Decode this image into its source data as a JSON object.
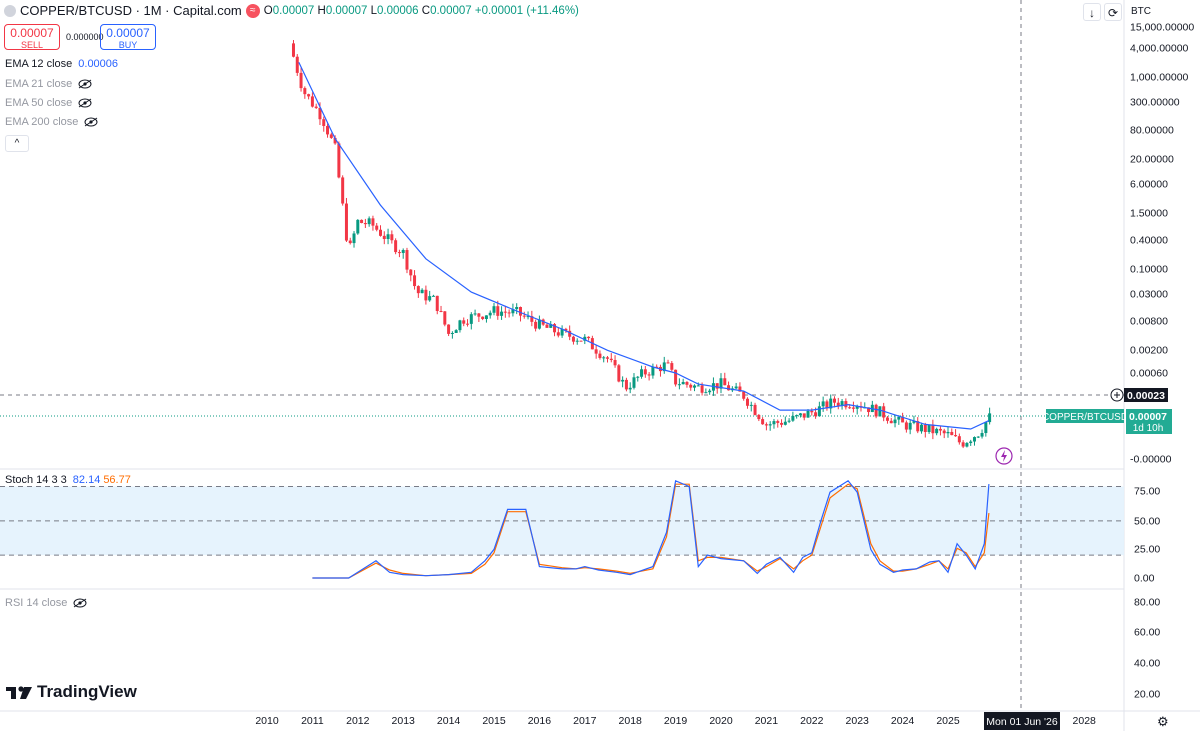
{
  "header": {
    "symbol": "COPPER/BTCUSD · 1M · Capital.com",
    "o_label": "O",
    "o": "0.00007",
    "h_label": "H",
    "h": "0.00007",
    "l_label": "L",
    "l": "0.00006",
    "c_label": "C",
    "c": "0.00007",
    "change": "+0.00001 (+11.46%)"
  },
  "trade": {
    "sell_price": "0.00007",
    "sell_label": "SELL",
    "spread": "0.000000",
    "buy_price": "0.00007",
    "buy_label": "BUY"
  },
  "indicators": [
    {
      "label": "EMA 12 close",
      "value": "0.00006",
      "visible": true
    },
    {
      "label": "EMA 21 close",
      "visible": false
    },
    {
      "label": "EMA 50 close",
      "visible": false
    },
    {
      "label": "EMA 200 close",
      "visible": false
    }
  ],
  "toolbar": {
    "currency": "BTC"
  },
  "price_axis": [
    "15,000.00000",
    "4,000.00000",
    "1,000.00000",
    "300.00000",
    "80.00000",
    "20.00000",
    "6.00000",
    "1.50000",
    "0.40000",
    "0.10000",
    "0.03000",
    "0.00800",
    "0.00200",
    "0.00060",
    "-0.00000"
  ],
  "price_labels": {
    "crosshair_price": "0.00023",
    "symbol_tag": "COPPER/BTCUSD",
    "last_price": "0.00007",
    "countdown": "1d 10h"
  },
  "stoch": {
    "label": "Stoch 14 3 3",
    "k": "82.14",
    "d": "56.77",
    "axis": [
      "75.00",
      "50.00",
      "25.00",
      "0.00"
    ]
  },
  "rsi": {
    "label": "RSI 14 close",
    "axis": [
      "80.00",
      "60.00",
      "40.00",
      "20.00"
    ]
  },
  "time_axis": {
    "years": [
      "2010",
      "2011",
      "2012",
      "2013",
      "2014",
      "2015",
      "2016",
      "2017",
      "2018",
      "2019",
      "2020",
      "2021",
      "2022",
      "2023",
      "2024",
      "2025",
      "2028"
    ],
    "crosshair_date": "Mon 01 Jun '26"
  },
  "brand": {
    "logo_text": "TradingView"
  },
  "colors": {
    "up": "#089981",
    "down": "#f23645",
    "ema": "#2962ff",
    "stoch_k": "#2962ff",
    "stoch_d": "#ff6d00",
    "band": "#e3f2fd"
  },
  "chart_data": [
    {
      "type": "candlestick",
      "title": "COPPER/BTCUSD",
      "ylabel": "BTC",
      "y_scale": "log",
      "x_range": [
        "2010",
        "2026"
      ],
      "series": [
        {
          "name": "COPPER/BTCUSD",
          "points": [
            {
              "x": 2010.5,
              "y": 5000
            },
            {
              "x": 2010.8,
              "y": 500
            },
            {
              "x": 2011.2,
              "y": 150
            },
            {
              "x": 2011.5,
              "y": 30
            },
            {
              "x": 2011.8,
              "y": 0.2
            },
            {
              "x": 2012.0,
              "y": 0.9
            },
            {
              "x": 2012.3,
              "y": 0.8
            },
            {
              "x": 2012.7,
              "y": 0.35
            },
            {
              "x": 2013.0,
              "y": 0.2
            },
            {
              "x": 2013.3,
              "y": 0.03
            },
            {
              "x": 2013.7,
              "y": 0.02
            },
            {
              "x": 2014.0,
              "y": 0.004
            },
            {
              "x": 2014.3,
              "y": 0.008
            },
            {
              "x": 2015.0,
              "y": 0.012
            },
            {
              "x": 2015.5,
              "y": 0.011
            },
            {
              "x": 2016.0,
              "y": 0.006
            },
            {
              "x": 2016.5,
              "y": 0.004
            },
            {
              "x": 2017.0,
              "y": 0.003
            },
            {
              "x": 2017.5,
              "y": 0.0012
            },
            {
              "x": 2017.9,
              "y": 0.0003
            },
            {
              "x": 2018.3,
              "y": 0.0006
            },
            {
              "x": 2018.8,
              "y": 0.0009
            },
            {
              "x": 2019.0,
              "y": 0.0004
            },
            {
              "x": 2019.5,
              "y": 0.0003
            },
            {
              "x": 2020.0,
              "y": 0.00035
            },
            {
              "x": 2020.5,
              "y": 0.0002
            },
            {
              "x": 2021.0,
              "y": 5e-05
            },
            {
              "x": 2021.5,
              "y": 6e-05
            },
            {
              "x": 2022.0,
              "y": 9e-05
            },
            {
              "x": 2022.5,
              "y": 0.00015
            },
            {
              "x": 2023.0,
              "y": 0.00014
            },
            {
              "x": 2023.5,
              "y": 9e-05
            },
            {
              "x": 2024.0,
              "y": 5e-05
            },
            {
              "x": 2024.5,
              "y": 4e-05
            },
            {
              "x": 2025.0,
              "y": 3e-05
            },
            {
              "x": 2025.3,
              "y": 2e-05
            },
            {
              "x": 2025.7,
              "y": 3.5e-05
            },
            {
              "x": 2025.9,
              "y": 7e-05
            }
          ]
        },
        {
          "name": "EMA 12 close",
          "points": [
            {
              "x": 2010.7,
              "y": 2000
            },
            {
              "x": 2011.5,
              "y": 50
            },
            {
              "x": 2012.5,
              "y": 2
            },
            {
              "x": 2013.5,
              "y": 0.15
            },
            {
              "x": 2014.5,
              "y": 0.03
            },
            {
              "x": 2015.5,
              "y": 0.012
            },
            {
              "x": 2016.5,
              "y": 0.005
            },
            {
              "x": 2017.5,
              "y": 0.0018
            },
            {
              "x": 2018.5,
              "y": 0.0008
            },
            {
              "x": 2019.0,
              "y": 0.0006
            },
            {
              "x": 2019.5,
              "y": 0.00035
            },
            {
              "x": 2020.5,
              "y": 0.00025
            },
            {
              "x": 2021.3,
              "y": 0.0001
            },
            {
              "x": 2022.0,
              "y": 0.0001
            },
            {
              "x": 2022.8,
              "y": 0.00013
            },
            {
              "x": 2023.5,
              "y": 0.0001
            },
            {
              "x": 2024.5,
              "y": 5e-05
            },
            {
              "x": 2025.5,
              "y": 4e-05
            },
            {
              "x": 2025.9,
              "y": 6e-05
            }
          ]
        }
      ]
    },
    {
      "type": "line",
      "title": "Stoch 14 3 3",
      "ylim": [
        0,
        100
      ],
      "series": [
        {
          "name": "%K",
          "x": [
            2011.0,
            2011.8,
            2012.4,
            2012.7,
            2013.0,
            2013.5,
            2014.0,
            2014.5,
            2014.8,
            2015.0,
            2015.3,
            2015.7,
            2016.0,
            2016.5,
            2016.8,
            2017.0,
            2017.3,
            2017.7,
            2018.0,
            2018.5,
            2018.8,
            2019.0,
            2019.3,
            2019.5,
            2019.7,
            2020.0,
            2020.5,
            2020.8,
            2021.0,
            2021.3,
            2021.6,
            2021.8,
            2022.0,
            2022.2,
            2022.4,
            2022.8,
            2023.0,
            2023.3,
            2023.5,
            2023.8,
            2024.0,
            2024.3,
            2024.6,
            2024.8,
            2025.0,
            2025.2,
            2025.4,
            2025.6,
            2025.8,
            2025.9
          ],
          "values": [
            0,
            0,
            15,
            5,
            3,
            2,
            3,
            5,
            15,
            25,
            60,
            60,
            10,
            8,
            8,
            10,
            7,
            5,
            3,
            10,
            40,
            85,
            80,
            10,
            20,
            17,
            15,
            4,
            12,
            18,
            5,
            18,
            22,
            50,
            75,
            85,
            75,
            25,
            12,
            5,
            7,
            8,
            14,
            15,
            5,
            30,
            20,
            8,
            30,
            82.14
          ]
        },
        {
          "name": "%D",
          "x": [
            2011.0,
            2011.8,
            2012.4,
            2012.7,
            2013.0,
            2013.5,
            2014.0,
            2014.5,
            2014.8,
            2015.0,
            2015.3,
            2015.7,
            2016.0,
            2016.5,
            2016.8,
            2017.0,
            2017.3,
            2017.7,
            2018.0,
            2018.5,
            2018.8,
            2019.0,
            2019.3,
            2019.5,
            2019.7,
            2020.0,
            2020.5,
            2020.8,
            2021.0,
            2021.3,
            2021.6,
            2021.8,
            2022.0,
            2022.2,
            2022.4,
            2022.8,
            2023.0,
            2023.3,
            2023.5,
            2023.8,
            2024.0,
            2024.3,
            2024.6,
            2024.8,
            2025.0,
            2025.2,
            2025.4,
            2025.6,
            2025.8,
            2025.9
          ],
          "values": [
            0,
            0,
            13,
            7,
            4,
            2,
            3,
            4,
            12,
            22,
            58,
            58,
            12,
            9,
            8,
            9,
            8,
            6,
            4,
            8,
            36,
            82,
            82,
            15,
            18,
            18,
            15,
            6,
            10,
            17,
            8,
            15,
            20,
            45,
            70,
            82,
            78,
            30,
            15,
            6,
            6,
            8,
            12,
            15,
            8,
            26,
            22,
            10,
            22,
            56.77
          ]
        }
      ]
    }
  ]
}
